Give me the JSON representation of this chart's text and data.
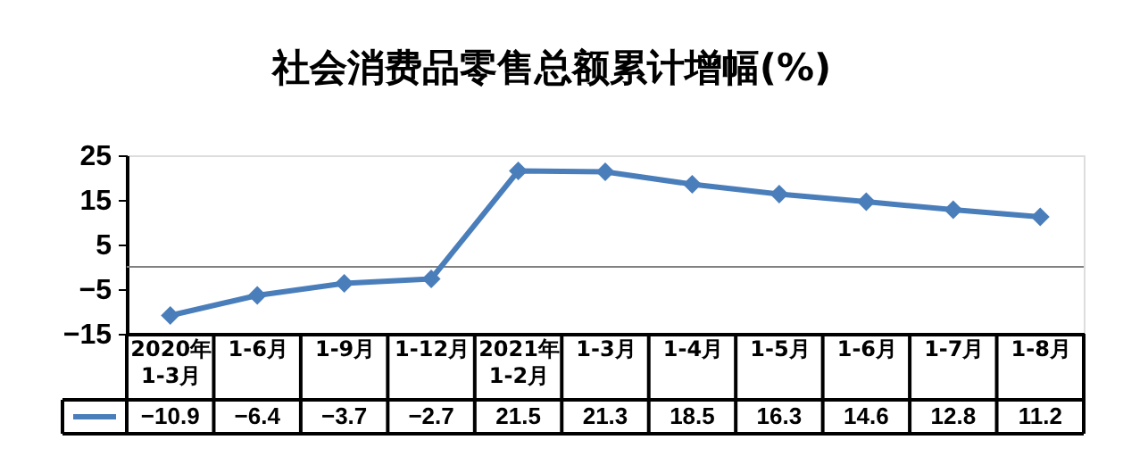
{
  "chart_data": {
    "type": "line",
    "title": "社会消费品零售总额累计增幅(%)",
    "categories": [
      "2020年\n1-3月",
      "1-6月",
      "1-9月",
      "1-12月",
      "2021年\n1-2月",
      "1-3月",
      "1-4月",
      "1-5月",
      "1-6月",
      "1-7月",
      "1-8月"
    ],
    "series": [
      {
        "color": "#4a7ebb",
        "values": [
          -10.9,
          -6.4,
          -3.7,
          -2.7,
          21.5,
          21.3,
          18.5,
          16.3,
          14.6,
          12.8,
          11.2
        ]
      }
    ],
    "ylim": [
      -15,
      25
    ],
    "yticks": [
      -15,
      -5,
      5,
      15,
      25
    ],
    "ref_lines": [
      {
        "axis": "y",
        "value": 0,
        "color": "#808080"
      }
    ],
    "data_labels": true,
    "marker": "diamond",
    "line_style": "solid"
  }
}
